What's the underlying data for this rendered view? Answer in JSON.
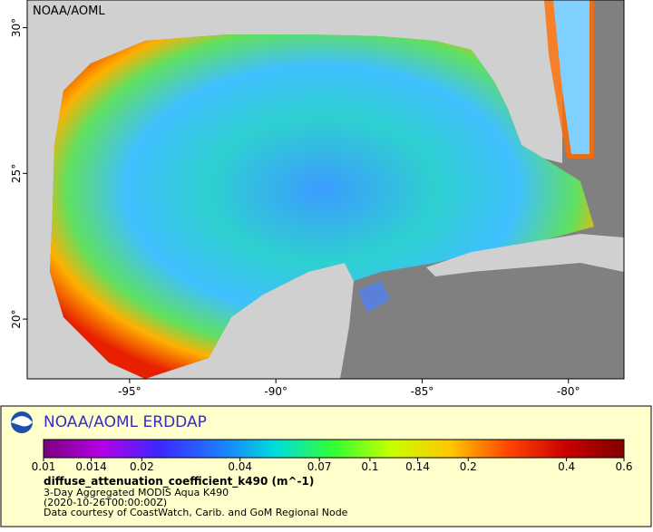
{
  "map": {
    "label": "NOAA/AOML",
    "xlim": [
      -98.5,
      -78.1
    ],
    "ylim": [
      17.95,
      30.95
    ],
    "xticks": [
      {
        "value": -95,
        "label": "-95°"
      },
      {
        "value": -90,
        "label": "-90°"
      },
      {
        "value": -85,
        "label": "-85°"
      },
      {
        "value": -80,
        "label": "-80°"
      }
    ],
    "yticks": [
      {
        "value": 20,
        "label": "20°"
      },
      {
        "value": 25,
        "label": "25°"
      },
      {
        "value": 30,
        "label": "30°"
      }
    ]
  },
  "legend": {
    "title": "NOAA/AOML ERDDAP",
    "colorbar": {
      "scale": "log",
      "lim": [
        0.01,
        0.6
      ],
      "ticks": [
        0.01,
        0.014,
        0.02,
        0.04,
        0.07,
        0.1,
        0.14,
        0.2,
        0.4,
        0.6
      ],
      "colors": [
        "#7a007f",
        "#b400e6",
        "#3c28ff",
        "#1e78ff",
        "#00dcdc",
        "#32ff32",
        "#c8ff00",
        "#ffc800",
        "#ff4600",
        "#c80000",
        "#800000"
      ]
    },
    "variable": "diffuse_attenuation_coefficient_k490 (m^-1)",
    "lines": [
      "3-Day Aggregated MODIS Aqua K490",
      "(2020-10-26T00:00:00Z)",
      "Data courtesy of CoastWatch, Carib. and GoM Regional Node"
    ]
  }
}
